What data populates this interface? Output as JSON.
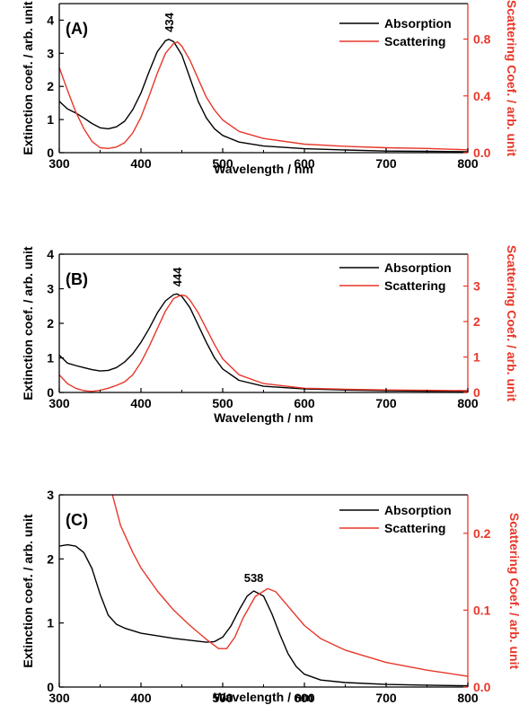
{
  "chart_data": [
    {
      "type": "line",
      "panel_label": "(A)",
      "xlabel": "Wavelength / nm",
      "ylabel_left": "Extinction coef. / arb. unit",
      "ylabel_right": "Scattering Coef. / arb. unit",
      "xlim": [
        300,
        800
      ],
      "xticks": [
        300,
        400,
        500,
        600,
        700,
        800
      ],
      "ylim_left": [
        0,
        4.5
      ],
      "yticks_left": [
        0,
        1,
        2,
        3,
        4
      ],
      "ytick_labels_left": [
        "0",
        "1",
        "2",
        "3",
        "4"
      ],
      "ylim_right": [
        0,
        1.05
      ],
      "yticks_right": [
        0.0,
        0.4,
        0.8
      ],
      "ytick_labels_right": [
        "0.0",
        "0.4",
        "0.8"
      ],
      "peak_annotation": {
        "text": "434",
        "x": 434,
        "y": 3.42
      },
      "legend_position": "top-right",
      "series": [
        {
          "name": "Absorption",
          "axis": "left",
          "color": "#000000",
          "points": [
            [
              300,
              1.55
            ],
            [
              310,
              1.32
            ],
            [
              320,
              1.2
            ],
            [
              330,
              1.05
            ],
            [
              340,
              0.88
            ],
            [
              350,
              0.75
            ],
            [
              360,
              0.72
            ],
            [
              370,
              0.78
            ],
            [
              380,
              0.95
            ],
            [
              390,
              1.3
            ],
            [
              400,
              1.8
            ],
            [
              410,
              2.45
            ],
            [
              420,
              3.05
            ],
            [
              430,
              3.38
            ],
            [
              434,
              3.42
            ],
            [
              440,
              3.35
            ],
            [
              450,
              2.95
            ],
            [
              460,
              2.25
            ],
            [
              470,
              1.55
            ],
            [
              480,
              1.05
            ],
            [
              490,
              0.72
            ],
            [
              500,
              0.52
            ],
            [
              520,
              0.32
            ],
            [
              550,
              0.2
            ],
            [
              600,
              0.12
            ],
            [
              650,
              0.08
            ],
            [
              700,
              0.05
            ],
            [
              750,
              0.04
            ],
            [
              800,
              0.03
            ]
          ]
        },
        {
          "name": "Scattering",
          "axis": "right",
          "color": "#e8372a",
          "points": [
            [
              300,
              0.6
            ],
            [
              310,
              0.44
            ],
            [
              320,
              0.29
            ],
            [
              330,
              0.17
            ],
            [
              340,
              0.08
            ],
            [
              350,
              0.035
            ],
            [
              360,
              0.03
            ],
            [
              370,
              0.04
            ],
            [
              380,
              0.07
            ],
            [
              390,
              0.14
            ],
            [
              400,
              0.25
            ],
            [
              410,
              0.4
            ],
            [
              420,
              0.56
            ],
            [
              430,
              0.7
            ],
            [
              440,
              0.77
            ],
            [
              445,
              0.78
            ],
            [
              450,
              0.75
            ],
            [
              460,
              0.65
            ],
            [
              470,
              0.52
            ],
            [
              480,
              0.39
            ],
            [
              490,
              0.3
            ],
            [
              500,
              0.23
            ],
            [
              520,
              0.15
            ],
            [
              550,
              0.1
            ],
            [
              600,
              0.06
            ],
            [
              650,
              0.045
            ],
            [
              700,
              0.035
            ],
            [
              750,
              0.03
            ],
            [
              800,
              0.02
            ]
          ]
        }
      ]
    },
    {
      "type": "line",
      "panel_label": "(B)",
      "xlabel": "Wavelength / nm",
      "ylabel_left": "Extinction coef. / arb. unit",
      "ylabel_right": "Scattering Coef. / arb. unit",
      "xlim": [
        300,
        800
      ],
      "xticks": [
        300,
        400,
        500,
        600,
        700,
        800
      ],
      "ylim_left": [
        0,
        4
      ],
      "yticks_left": [
        0,
        1,
        2,
        3,
        4
      ],
      "ytick_labels_left": [
        "0",
        "1",
        "2",
        "3",
        "4"
      ],
      "ylim_right": [
        0,
        3.9
      ],
      "yticks_right": [
        0,
        1,
        2,
        3
      ],
      "ytick_labels_right": [
        "0",
        "1",
        "2",
        "3"
      ],
      "peak_annotation": {
        "text": "444",
        "x": 444,
        "y": 2.85
      },
      "legend_position": "top-right",
      "series": [
        {
          "name": "Absorption",
          "axis": "left",
          "color": "#000000",
          "points": [
            [
              300,
              1.08
            ],
            [
              310,
              0.85
            ],
            [
              320,
              0.78
            ],
            [
              330,
              0.72
            ],
            [
              340,
              0.66
            ],
            [
              350,
              0.62
            ],
            [
              360,
              0.64
            ],
            [
              370,
              0.72
            ],
            [
              380,
              0.88
            ],
            [
              390,
              1.12
            ],
            [
              400,
              1.45
            ],
            [
              410,
              1.85
            ],
            [
              420,
              2.3
            ],
            [
              430,
              2.65
            ],
            [
              440,
              2.83
            ],
            [
              444,
              2.85
            ],
            [
              450,
              2.78
            ],
            [
              460,
              2.45
            ],
            [
              470,
              1.95
            ],
            [
              480,
              1.45
            ],
            [
              490,
              1.0
            ],
            [
              500,
              0.68
            ],
            [
              520,
              0.35
            ],
            [
              550,
              0.18
            ],
            [
              600,
              0.1
            ],
            [
              650,
              0.07
            ],
            [
              700,
              0.05
            ],
            [
              750,
              0.04
            ],
            [
              800,
              0.03
            ]
          ]
        },
        {
          "name": "Scattering",
          "axis": "right",
          "color": "#e8372a",
          "points": [
            [
              300,
              0.5
            ],
            [
              310,
              0.25
            ],
            [
              320,
              0.12
            ],
            [
              330,
              0.05
            ],
            [
              340,
              0.03
            ],
            [
              350,
              0.06
            ],
            [
              360,
              0.12
            ],
            [
              370,
              0.2
            ],
            [
              380,
              0.3
            ],
            [
              390,
              0.5
            ],
            [
              400,
              0.85
            ],
            [
              410,
              1.3
            ],
            [
              420,
              1.8
            ],
            [
              430,
              2.3
            ],
            [
              440,
              2.65
            ],
            [
              450,
              2.75
            ],
            [
              455,
              2.72
            ],
            [
              460,
              2.6
            ],
            [
              470,
              2.25
            ],
            [
              480,
              1.8
            ],
            [
              490,
              1.35
            ],
            [
              500,
              0.95
            ],
            [
              520,
              0.5
            ],
            [
              550,
              0.25
            ],
            [
              600,
              0.12
            ],
            [
              650,
              0.09
            ],
            [
              700,
              0.07
            ],
            [
              750,
              0.06
            ],
            [
              800,
              0.05
            ]
          ]
        }
      ]
    },
    {
      "type": "line",
      "panel_label": "(C)",
      "xlabel": "Wavelength / nm",
      "ylabel_left": "Extinction coef. / arb. unit",
      "ylabel_right": "Scattering Coef. / arb. unit",
      "xlim": [
        300,
        800
      ],
      "xticks": [
        300,
        400,
        500,
        600,
        700,
        800
      ],
      "ylim_left": [
        0,
        3
      ],
      "yticks_left": [
        0,
        1,
        2,
        3
      ],
      "ytick_labels_left": [
        "0",
        "1",
        "2",
        "3"
      ],
      "ylim_right": [
        0,
        0.25
      ],
      "yticks_right": [
        0.0,
        0.1,
        0.2
      ],
      "ytick_labels_right": [
        "0.0",
        "0.1",
        "0.2"
      ],
      "peak_annotation": {
        "text": "538",
        "x": 538,
        "y": 1.5
      },
      "legend_position": "top-right",
      "series": [
        {
          "name": "Absorption",
          "axis": "left",
          "color": "#000000",
          "points": [
            [
              300,
              2.2
            ],
            [
              310,
              2.22
            ],
            [
              320,
              2.2
            ],
            [
              330,
              2.1
            ],
            [
              340,
              1.85
            ],
            [
              350,
              1.45
            ],
            [
              360,
              1.12
            ],
            [
              370,
              0.98
            ],
            [
              380,
              0.92
            ],
            [
              400,
              0.84
            ],
            [
              420,
              0.8
            ],
            [
              440,
              0.76
            ],
            [
              460,
              0.73
            ],
            [
              480,
              0.7
            ],
            [
              490,
              0.71
            ],
            [
              500,
              0.78
            ],
            [
              510,
              0.95
            ],
            [
              520,
              1.2
            ],
            [
              530,
              1.42
            ],
            [
              538,
              1.5
            ],
            [
              550,
              1.42
            ],
            [
              560,
              1.15
            ],
            [
              570,
              0.82
            ],
            [
              580,
              0.52
            ],
            [
              590,
              0.32
            ],
            [
              600,
              0.2
            ],
            [
              620,
              0.11
            ],
            [
              650,
              0.07
            ],
            [
              700,
              0.04
            ],
            [
              750,
              0.03
            ],
            [
              800,
              0.02
            ]
          ]
        },
        {
          "name": "Scattering",
          "axis": "right",
          "color": "#e8372a",
          "points": [
            [
              365,
              0.25
            ],
            [
              375,
              0.21
            ],
            [
              390,
              0.175
            ],
            [
              400,
              0.155
            ],
            [
              420,
              0.125
            ],
            [
              440,
              0.1
            ],
            [
              460,
              0.08
            ],
            [
              480,
              0.062
            ],
            [
              495,
              0.05
            ],
            [
              505,
              0.05
            ],
            [
              515,
              0.065
            ],
            [
              525,
              0.09
            ],
            [
              540,
              0.118
            ],
            [
              555,
              0.128
            ],
            [
              565,
              0.124
            ],
            [
              580,
              0.105
            ],
            [
              600,
              0.08
            ],
            [
              620,
              0.063
            ],
            [
              650,
              0.048
            ],
            [
              700,
              0.032
            ],
            [
              750,
              0.022
            ],
            [
              800,
              0.014
            ]
          ]
        }
      ]
    }
  ]
}
